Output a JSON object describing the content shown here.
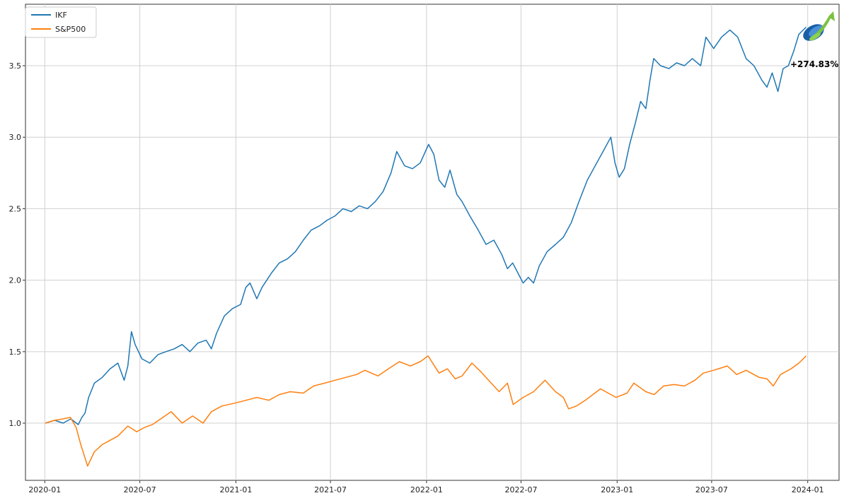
{
  "chart_data": {
    "type": "line",
    "title": "",
    "xlabel": "",
    "ylabel": "",
    "grid": true,
    "legend_position": "top-left",
    "x_ticks": [
      "2020-01",
      "2020-07",
      "2021-01",
      "2021-07",
      "2022-01",
      "2022-07",
      "2023-01",
      "2023-07",
      "2024-01"
    ],
    "y_ticks": [
      "1.0",
      "1.5",
      "2.0",
      "2.5",
      "3.0",
      "3.5"
    ],
    "xlim": [
      "2019-11-25",
      "2024-03-01"
    ],
    "ylim": [
      0.6,
      3.93
    ],
    "annotation": "+274.83%",
    "logo_icon": "rising-arrow-logo-icon",
    "series": [
      {
        "name": "IKF",
        "color": "#1f77b4",
        "points": [
          [
            "2020-01-02",
            1.0
          ],
          [
            "2020-01-20",
            1.02
          ],
          [
            "2020-02-05",
            1.0
          ],
          [
            "2020-02-20",
            1.03
          ],
          [
            "2020-03-05",
            0.99
          ],
          [
            "2020-03-12",
            1.04
          ],
          [
            "2020-03-18",
            1.07
          ],
          [
            "2020-03-25",
            1.18
          ],
          [
            "2020-04-05",
            1.28
          ],
          [
            "2020-04-20",
            1.32
          ],
          [
            "2020-05-05",
            1.38
          ],
          [
            "2020-05-20",
            1.42
          ],
          [
            "2020-06-01",
            1.3
          ],
          [
            "2020-06-08",
            1.4
          ],
          [
            "2020-06-15",
            1.64
          ],
          [
            "2020-06-22",
            1.55
          ],
          [
            "2020-07-05",
            1.45
          ],
          [
            "2020-07-20",
            1.42
          ],
          [
            "2020-08-05",
            1.48
          ],
          [
            "2020-08-20",
            1.5
          ],
          [
            "2020-09-05",
            1.52
          ],
          [
            "2020-09-20",
            1.55
          ],
          [
            "2020-10-05",
            1.5
          ],
          [
            "2020-10-20",
            1.56
          ],
          [
            "2020-11-05",
            1.58
          ],
          [
            "2020-11-15",
            1.52
          ],
          [
            "2020-11-25",
            1.63
          ],
          [
            "2020-12-10",
            1.75
          ],
          [
            "2020-12-25",
            1.8
          ],
          [
            "2021-01-10",
            1.83
          ],
          [
            "2021-01-20",
            1.95
          ],
          [
            "2021-01-28",
            1.98
          ],
          [
            "2021-02-10",
            1.87
          ],
          [
            "2021-02-20",
            1.95
          ],
          [
            "2021-03-10",
            2.05
          ],
          [
            "2021-03-25",
            2.12
          ],
          [
            "2021-04-10",
            2.15
          ],
          [
            "2021-04-25",
            2.2
          ],
          [
            "2021-05-10",
            2.28
          ],
          [
            "2021-05-25",
            2.35
          ],
          [
            "2021-06-10",
            2.38
          ],
          [
            "2021-06-25",
            2.42
          ],
          [
            "2021-07-10",
            2.45
          ],
          [
            "2021-07-25",
            2.5
          ],
          [
            "2021-08-10",
            2.48
          ],
          [
            "2021-08-25",
            2.52
          ],
          [
            "2021-09-10",
            2.5
          ],
          [
            "2021-09-25",
            2.55
          ],
          [
            "2021-10-10",
            2.62
          ],
          [
            "2021-10-25",
            2.75
          ],
          [
            "2021-11-05",
            2.9
          ],
          [
            "2021-11-20",
            2.8
          ],
          [
            "2021-12-05",
            2.78
          ],
          [
            "2021-12-20",
            2.82
          ],
          [
            "2022-01-05",
            2.95
          ],
          [
            "2022-01-15",
            2.88
          ],
          [
            "2022-01-25",
            2.7
          ],
          [
            "2022-02-05",
            2.65
          ],
          [
            "2022-02-15",
            2.77
          ],
          [
            "2022-02-28",
            2.6
          ],
          [
            "2022-03-10",
            2.55
          ],
          [
            "2022-03-25",
            2.45
          ],
          [
            "2022-04-10",
            2.35
          ],
          [
            "2022-04-25",
            2.25
          ],
          [
            "2022-05-10",
            2.28
          ],
          [
            "2022-05-25",
            2.18
          ],
          [
            "2022-06-05",
            2.08
          ],
          [
            "2022-06-15",
            2.12
          ],
          [
            "2022-06-25",
            2.05
          ],
          [
            "2022-07-05",
            1.98
          ],
          [
            "2022-07-15",
            2.02
          ],
          [
            "2022-07-25",
            1.98
          ],
          [
            "2022-08-05",
            2.1
          ],
          [
            "2022-08-20",
            2.2
          ],
          [
            "2022-09-05",
            2.25
          ],
          [
            "2022-09-20",
            2.3
          ],
          [
            "2022-10-05",
            2.4
          ],
          [
            "2022-10-20",
            2.55
          ],
          [
            "2022-11-05",
            2.7
          ],
          [
            "2022-11-20",
            2.8
          ],
          [
            "2022-12-05",
            2.9
          ],
          [
            "2022-12-20",
            3.0
          ],
          [
            "2022-12-28",
            2.82
          ],
          [
            "2023-01-05",
            2.72
          ],
          [
            "2023-01-15",
            2.78
          ],
          [
            "2023-01-25",
            2.95
          ],
          [
            "2023-02-05",
            3.1
          ],
          [
            "2023-02-15",
            3.25
          ],
          [
            "2023-02-25",
            3.2
          ],
          [
            "2023-03-05",
            3.4
          ],
          [
            "2023-03-12",
            3.55
          ],
          [
            "2023-03-25",
            3.5
          ],
          [
            "2023-04-10",
            3.48
          ],
          [
            "2023-04-25",
            3.52
          ],
          [
            "2023-05-10",
            3.5
          ],
          [
            "2023-05-25",
            3.55
          ],
          [
            "2023-06-10",
            3.5
          ],
          [
            "2023-06-20",
            3.7
          ],
          [
            "2023-07-05",
            3.62
          ],
          [
            "2023-07-20",
            3.7
          ],
          [
            "2023-08-05",
            3.75
          ],
          [
            "2023-08-20",
            3.7
          ],
          [
            "2023-09-05",
            3.55
          ],
          [
            "2023-09-20",
            3.5
          ],
          [
            "2023-10-05",
            3.4
          ],
          [
            "2023-10-15",
            3.35
          ],
          [
            "2023-10-25",
            3.45
          ],
          [
            "2023-11-05",
            3.32
          ],
          [
            "2023-11-15",
            3.48
          ],
          [
            "2023-11-25",
            3.5
          ],
          [
            "2023-12-05",
            3.6
          ],
          [
            "2023-12-15",
            3.72
          ],
          [
            "2023-12-29",
            3.77
          ]
        ]
      },
      {
        "name": "S&P500",
        "color": "#ff7f0e",
        "points": [
          [
            "2020-01-02",
            1.0
          ],
          [
            "2020-01-20",
            1.02
          ],
          [
            "2020-02-05",
            1.03
          ],
          [
            "2020-02-19",
            1.04
          ],
          [
            "2020-03-01",
            0.97
          ],
          [
            "2020-03-10",
            0.85
          ],
          [
            "2020-03-23",
            0.7
          ],
          [
            "2020-04-05",
            0.8
          ],
          [
            "2020-04-20",
            0.85
          ],
          [
            "2020-05-05",
            0.88
          ],
          [
            "2020-05-20",
            0.91
          ],
          [
            "2020-06-08",
            0.98
          ],
          [
            "2020-06-25",
            0.94
          ],
          [
            "2020-07-10",
            0.97
          ],
          [
            "2020-07-25",
            0.99
          ],
          [
            "2020-08-10",
            1.03
          ],
          [
            "2020-08-30",
            1.08
          ],
          [
            "2020-09-20",
            1.0
          ],
          [
            "2020-10-10",
            1.05
          ],
          [
            "2020-10-30",
            1.0
          ],
          [
            "2020-11-15",
            1.08
          ],
          [
            "2020-12-05",
            1.12
          ],
          [
            "2020-12-30",
            1.14
          ],
          [
            "2021-01-20",
            1.16
          ],
          [
            "2021-02-10",
            1.18
          ],
          [
            "2021-03-05",
            1.16
          ],
          [
            "2021-03-25",
            1.2
          ],
          [
            "2021-04-15",
            1.22
          ],
          [
            "2021-05-10",
            1.21
          ],
          [
            "2021-05-30",
            1.26
          ],
          [
            "2021-06-20",
            1.28
          ],
          [
            "2021-07-10",
            1.3
          ],
          [
            "2021-07-30",
            1.32
          ],
          [
            "2021-08-20",
            1.34
          ],
          [
            "2021-09-05",
            1.37
          ],
          [
            "2021-09-30",
            1.33
          ],
          [
            "2021-10-20",
            1.38
          ],
          [
            "2021-11-10",
            1.43
          ],
          [
            "2021-12-01",
            1.4
          ],
          [
            "2021-12-20",
            1.43
          ],
          [
            "2022-01-04",
            1.47
          ],
          [
            "2022-01-25",
            1.35
          ],
          [
            "2022-02-10",
            1.38
          ],
          [
            "2022-02-25",
            1.31
          ],
          [
            "2022-03-10",
            1.33
          ],
          [
            "2022-03-29",
            1.42
          ],
          [
            "2022-04-15",
            1.36
          ],
          [
            "2022-05-05",
            1.28
          ],
          [
            "2022-05-20",
            1.22
          ],
          [
            "2022-06-05",
            1.28
          ],
          [
            "2022-06-16",
            1.13
          ],
          [
            "2022-07-05",
            1.18
          ],
          [
            "2022-07-25",
            1.22
          ],
          [
            "2022-08-16",
            1.3
          ],
          [
            "2022-09-05",
            1.22
          ],
          [
            "2022-09-20",
            1.18
          ],
          [
            "2022-09-30",
            1.1
          ],
          [
            "2022-10-15",
            1.12
          ],
          [
            "2022-11-01",
            1.16
          ],
          [
            "2022-11-30",
            1.24
          ],
          [
            "2022-12-15",
            1.21
          ],
          [
            "2022-12-30",
            1.18
          ],
          [
            "2023-01-20",
            1.21
          ],
          [
            "2023-02-02",
            1.28
          ],
          [
            "2023-02-25",
            1.22
          ],
          [
            "2023-03-13",
            1.2
          ],
          [
            "2023-03-31",
            1.26
          ],
          [
            "2023-04-20",
            1.27
          ],
          [
            "2023-05-10",
            1.26
          ],
          [
            "2023-05-30",
            1.3
          ],
          [
            "2023-06-15",
            1.35
          ],
          [
            "2023-07-05",
            1.37
          ],
          [
            "2023-07-31",
            1.4
          ],
          [
            "2023-08-18",
            1.34
          ],
          [
            "2023-09-05",
            1.37
          ],
          [
            "2023-09-30",
            1.32
          ],
          [
            "2023-10-15",
            1.31
          ],
          [
            "2023-10-27",
            1.26
          ],
          [
            "2023-11-10",
            1.34
          ],
          [
            "2023-11-30",
            1.38
          ],
          [
            "2023-12-15",
            1.42
          ],
          [
            "2023-12-29",
            1.47
          ]
        ]
      }
    ]
  }
}
